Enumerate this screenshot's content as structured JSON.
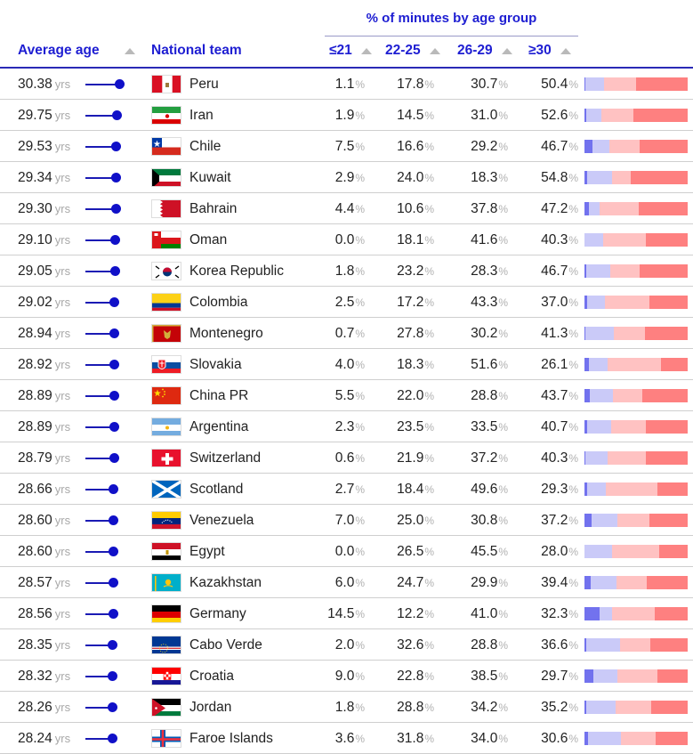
{
  "header": {
    "group_title": "% of minutes by age group",
    "avg_label": "Average age",
    "team_label": "National team",
    "col_u21": "≤21",
    "col_22_25": "22-25",
    "col_26_29": "26-29",
    "col_30": "≥30"
  },
  "units": {
    "age": "yrs",
    "pct": "%"
  },
  "colors": {
    "accent": "#1e1ed2",
    "u21": "#7272ee",
    "a22_25": "#cacaf8",
    "a26_29": "#ffc2c2",
    "a30": "#fe8080"
  },
  "rows": [
    {
      "avg": "30.38",
      "team": "Peru",
      "flag": "peru",
      "u21": "1.1",
      "a22_25": "17.8",
      "a26_29": "30.7",
      "a30": "50.4"
    },
    {
      "avg": "29.75",
      "team": "Iran",
      "flag": "iran",
      "u21": "1.9",
      "a22_25": "14.5",
      "a26_29": "31.0",
      "a30": "52.6"
    },
    {
      "avg": "29.53",
      "team": "Chile",
      "flag": "chile",
      "u21": "7.5",
      "a22_25": "16.6",
      "a26_29": "29.2",
      "a30": "46.7"
    },
    {
      "avg": "29.34",
      "team": "Kuwait",
      "flag": "kuwait",
      "u21": "2.9",
      "a22_25": "24.0",
      "a26_29": "18.3",
      "a30": "54.8"
    },
    {
      "avg": "29.30",
      "team": "Bahrain",
      "flag": "bahrain",
      "u21": "4.4",
      "a22_25": "10.6",
      "a26_29": "37.8",
      "a30": "47.2"
    },
    {
      "avg": "29.10",
      "team": "Oman",
      "flag": "oman",
      "u21": "0.0",
      "a22_25": "18.1",
      "a26_29": "41.6",
      "a30": "40.3"
    },
    {
      "avg": "29.05",
      "team": "Korea Republic",
      "flag": "korea",
      "u21": "1.8",
      "a22_25": "23.2",
      "a26_29": "28.3",
      "a30": "46.7"
    },
    {
      "avg": "29.02",
      "team": "Colombia",
      "flag": "colombia",
      "u21": "2.5",
      "a22_25": "17.2",
      "a26_29": "43.3",
      "a30": "37.0"
    },
    {
      "avg": "28.94",
      "team": "Montenegro",
      "flag": "montenegro",
      "u21": "0.7",
      "a22_25": "27.8",
      "a26_29": "30.2",
      "a30": "41.3"
    },
    {
      "avg": "28.92",
      "team": "Slovakia",
      "flag": "slovakia",
      "u21": "4.0",
      "a22_25": "18.3",
      "a26_29": "51.6",
      "a30": "26.1"
    },
    {
      "avg": "28.89",
      "team": "China PR",
      "flag": "china",
      "u21": "5.5",
      "a22_25": "22.0",
      "a26_29": "28.8",
      "a30": "43.7"
    },
    {
      "avg": "28.89",
      "team": "Argentina",
      "flag": "argentina",
      "u21": "2.3",
      "a22_25": "23.5",
      "a26_29": "33.5",
      "a30": "40.7"
    },
    {
      "avg": "28.79",
      "team": "Switzerland",
      "flag": "switzerland",
      "u21": "0.6",
      "a22_25": "21.9",
      "a26_29": "37.2",
      "a30": "40.3"
    },
    {
      "avg": "28.66",
      "team": "Scotland",
      "flag": "scotland",
      "u21": "2.7",
      "a22_25": "18.4",
      "a26_29": "49.6",
      "a30": "29.3"
    },
    {
      "avg": "28.60",
      "team": "Venezuela",
      "flag": "venezuela",
      "u21": "7.0",
      "a22_25": "25.0",
      "a26_29": "30.8",
      "a30": "37.2"
    },
    {
      "avg": "28.60",
      "team": "Egypt",
      "flag": "egypt",
      "u21": "0.0",
      "a22_25": "26.5",
      "a26_29": "45.5",
      "a30": "28.0"
    },
    {
      "avg": "28.57",
      "team": "Kazakhstan",
      "flag": "kazakhstan",
      "u21": "6.0",
      "a22_25": "24.7",
      "a26_29": "29.9",
      "a30": "39.4"
    },
    {
      "avg": "28.56",
      "team": "Germany",
      "flag": "germany",
      "u21": "14.5",
      "a22_25": "12.2",
      "a26_29": "41.0",
      "a30": "32.3"
    },
    {
      "avg": "28.35",
      "team": "Cabo Verde",
      "flag": "caboverde",
      "u21": "2.0",
      "a22_25": "32.6",
      "a26_29": "28.8",
      "a30": "36.6"
    },
    {
      "avg": "28.32",
      "team": "Croatia",
      "flag": "croatia",
      "u21": "9.0",
      "a22_25": "22.8",
      "a26_29": "38.5",
      "a30": "29.7"
    },
    {
      "avg": "28.26",
      "team": "Jordan",
      "flag": "jordan",
      "u21": "1.8",
      "a22_25": "28.8",
      "a26_29": "34.2",
      "a30": "35.2"
    },
    {
      "avg": "28.24",
      "team": "Faroe Islands",
      "flag": "faroe",
      "u21": "3.6",
      "a22_25": "31.8",
      "a26_29": "34.0",
      "a30": "30.6"
    }
  ]
}
